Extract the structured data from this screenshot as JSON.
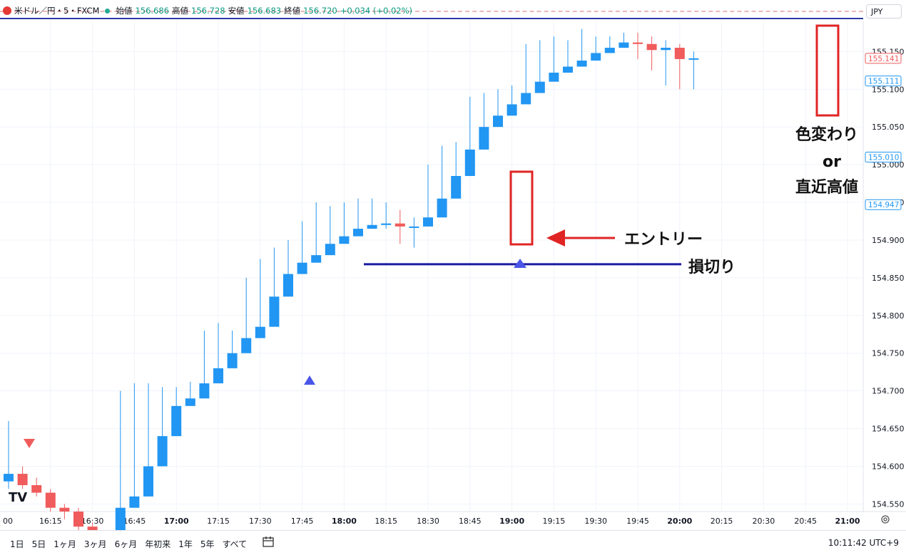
{
  "legend": {
    "symbol": "米ドル／円・5・FXCM",
    "open_label": "始値",
    "open": "156.686",
    "high_label": "高値",
    "high": "156.728",
    "low_label": "安値",
    "low": "156.683",
    "close_label": "終値",
    "close": "156.720",
    "change": "+0.034 (+0.02%)"
  },
  "currency_button": "JPY",
  "bottom_bar": {
    "ranges": [
      "1日",
      "5日",
      "1ヶ月",
      "3ヶ月",
      "6ヶ月",
      "年初来",
      "1年",
      "5年",
      "すべて"
    ],
    "clock": "10:11:42 UTC+9"
  },
  "colors": {
    "up": "#2196f3",
    "down": "#f05b5b",
    "annotation_red": "#e02424",
    "stop_line": "#1a1aa0"
  },
  "annotations": {
    "entry": "エントリー",
    "stop_loss": "損切り",
    "exit_line1": "色変わり",
    "exit_line2": "or",
    "exit_line3": "直近高値"
  },
  "chart_data": {
    "type": "candlestick",
    "title": "米ドル／円・5・FXCM",
    "x_ticks": [
      "00",
      "16:15",
      "16:30",
      "16:45",
      "17:00",
      "17:15",
      "17:30",
      "17:45",
      "18:00",
      "18:15",
      "18:30",
      "18:45",
      "19:00",
      "19:15",
      "19:30",
      "19:45",
      "20:00",
      "20:15",
      "20:30",
      "20:45",
      "21:00"
    ],
    "bold_ticks": [
      "17:00",
      "18:00",
      "19:00",
      "20:00",
      "21:00"
    ],
    "y_ticks": [
      "155.150",
      "155.100",
      "155.050",
      "155.000",
      "154.950",
      "154.900",
      "154.850",
      "154.800",
      "154.750",
      "154.700",
      "154.650",
      "154.600",
      "154.550"
    ],
    "ylim": [
      154.54,
      155.19
    ],
    "price_labels": [
      {
        "value": "155.141",
        "color": "#f05b5b"
      },
      {
        "value": "155.111",
        "color": "#2196f3"
      },
      {
        "value": "155.010",
        "color": "#2196f3"
      },
      {
        "value": "154.947",
        "color": "#2196f3"
      }
    ],
    "stop_loss_level": 154.868,
    "start_time": "16:00",
    "interval_minutes": 5,
    "candles": {
      "open": [
        154.58,
        154.59,
        154.575,
        154.565,
        154.545,
        154.54,
        154.52,
        154.49,
        154.47,
        154.545,
        154.56,
        154.6,
        154.64,
        154.68,
        154.69,
        154.71,
        154.73,
        154.75,
        154.77,
        154.785,
        154.825,
        154.855,
        154.87,
        154.88,
        154.895,
        154.905,
        154.915,
        154.92,
        154.922,
        154.918,
        154.918,
        154.93,
        154.955,
        154.985,
        155.02,
        155.05,
        155.065,
        155.08,
        155.095,
        155.11,
        155.122,
        155.13,
        155.138,
        155.148,
        155.155,
        155.162,
        155.16,
        155.152,
        155.155,
        155.14
      ],
      "close": [
        154.59,
        154.575,
        154.565,
        154.545,
        154.54,
        154.52,
        154.49,
        154.47,
        154.545,
        154.56,
        154.6,
        154.64,
        154.68,
        154.69,
        154.71,
        154.73,
        154.75,
        154.77,
        154.785,
        154.825,
        154.855,
        154.87,
        154.88,
        154.895,
        154.905,
        154.915,
        154.92,
        154.922,
        154.918,
        154.918,
        154.93,
        154.955,
        154.985,
        155.02,
        155.05,
        155.065,
        155.08,
        155.095,
        155.11,
        155.122,
        155.13,
        155.138,
        155.148,
        155.155,
        155.162,
        155.16,
        155.152,
        155.155,
        155.14,
        155.141
      ],
      "high": [
        154.66,
        154.6,
        154.585,
        154.57,
        154.55,
        154.545,
        154.525,
        154.495,
        154.7,
        154.71,
        154.71,
        154.705,
        154.705,
        154.712,
        154.78,
        154.79,
        154.78,
        154.85,
        154.875,
        154.89,
        154.9,
        154.925,
        154.95,
        154.945,
        154.95,
        154.955,
        154.955,
        154.95,
        154.94,
        154.93,
        155.0,
        155.025,
        155.03,
        155.09,
        155.095,
        155.1,
        155.105,
        155.16,
        155.165,
        155.17,
        155.165,
        155.18,
        155.17,
        155.17,
        155.175,
        155.175,
        155.17,
        155.165,
        155.16,
        155.15
      ],
      "low": [
        154.57,
        154.57,
        154.56,
        154.54,
        154.53,
        154.51,
        154.485,
        154.465,
        154.54,
        154.555,
        154.59,
        154.63,
        154.675,
        154.685,
        154.705,
        154.725,
        154.745,
        154.765,
        154.78,
        154.82,
        154.85,
        154.865,
        154.875,
        154.89,
        154.9,
        154.91,
        154.915,
        154.915,
        154.895,
        154.89,
        154.92,
        154.95,
        154.98,
        155.015,
        155.045,
        155.06,
        155.075,
        155.09,
        155.105,
        155.118,
        155.125,
        155.134,
        155.14,
        155.15,
        155.158,
        155.14,
        155.125,
        155.105,
        155.1,
        155.1
      ]
    },
    "up_color": "#2196f3",
    "down_color": "#f05b5b"
  }
}
